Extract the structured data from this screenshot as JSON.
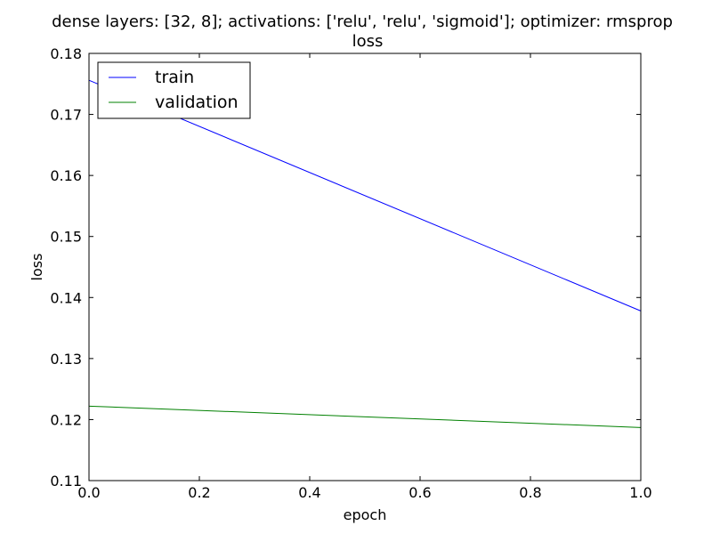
{
  "chart_data": {
    "type": "line",
    "title": "dense layers: [32, 8]; activations: ['relu', 'relu', 'sigmoid']; optimizer: rmsprop",
    "subtitle": "loss",
    "xlabel": "epoch",
    "ylabel": "loss",
    "xlim": [
      0.0,
      1.0
    ],
    "ylim": [
      0.11,
      0.18
    ],
    "xticks": [
      "0.0",
      "0.2",
      "0.4",
      "0.6",
      "0.8",
      "1.0"
    ],
    "xtick_values": [
      0.0,
      0.2,
      0.4,
      0.6,
      0.8,
      1.0
    ],
    "yticks": [
      "0.11",
      "0.12",
      "0.13",
      "0.14",
      "0.15",
      "0.16",
      "0.17",
      "0.18"
    ],
    "ytick_values": [
      0.11,
      0.12,
      0.13,
      0.14,
      0.15,
      0.16,
      0.17,
      0.18
    ],
    "grid": false,
    "legend_position": "top-left",
    "series": [
      {
        "name": "train",
        "color": "#0000ff",
        "x": [
          0,
          1
        ],
        "y": [
          0.1756,
          0.1378
        ]
      },
      {
        "name": "validation",
        "color": "#008000",
        "x": [
          0,
          1
        ],
        "y": [
          0.1222,
          0.1187
        ]
      }
    ]
  }
}
